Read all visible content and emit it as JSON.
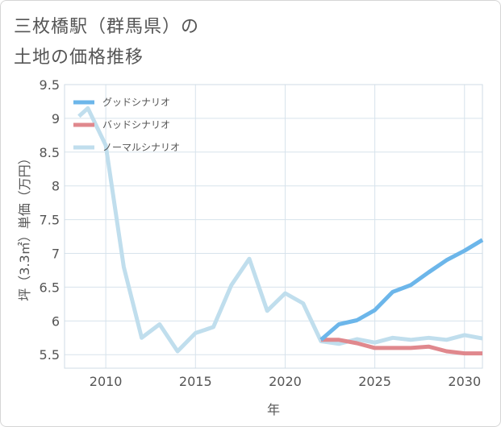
{
  "title_line1": "三枚橋駅（群馬県）の",
  "title_line2": "土地の価格推移",
  "chart_data": {
    "type": "line",
    "title": "三枚橋駅（群馬県）の土地の価格推移",
    "xlabel": "年",
    "ylabel": "坪（3.3㎡）単価（万円）",
    "xlim": [
      2007.7,
      2031
    ],
    "ylim": [
      5.3,
      9.5
    ],
    "xticks": [
      2010,
      2015,
      2020,
      2025,
      2030
    ],
    "yticks": [
      5.5,
      6,
      6.5,
      7,
      7.5,
      8,
      8.5,
      9,
      9.5
    ],
    "ytick_labels": [
      "5.5",
      "6",
      "6.5",
      "7",
      "7.5",
      "8",
      "8.5",
      "9",
      "9.5"
    ],
    "legend_position": "top-left",
    "series": [
      {
        "name": "グッドシナリオ",
        "color": "#6cb6ea",
        "x": [
          2022,
          2023,
          2024,
          2025,
          2026,
          2027,
          2028,
          2029,
          2030,
          2031
        ],
        "y": [
          5.72,
          5.95,
          6.01,
          6.16,
          6.43,
          6.53,
          6.72,
          6.9,
          7.04,
          7.2
        ]
      },
      {
        "name": "バッドシナリオ",
        "color": "#e0888d",
        "x": [
          2022,
          2023,
          2024,
          2025,
          2026,
          2027,
          2028,
          2029,
          2030,
          2031
        ],
        "y": [
          5.72,
          5.72,
          5.67,
          5.6,
          5.6,
          5.6,
          5.62,
          5.55,
          5.52,
          5.52
        ]
      },
      {
        "name": "ノーマルシナリオ",
        "color": "#c0deed",
        "x": [
          2008.5,
          2009,
          2010,
          2011,
          2012,
          2013,
          2014,
          2015,
          2016,
          2017,
          2018,
          2019,
          2020,
          2021,
          2022,
          2023,
          2024,
          2025,
          2026,
          2027,
          2028,
          2029,
          2030,
          2031
        ],
        "y": [
          9.03,
          9.15,
          8.6,
          6.8,
          5.75,
          5.95,
          5.55,
          5.82,
          5.91,
          6.53,
          6.92,
          6.15,
          6.41,
          6.26,
          5.7,
          5.66,
          5.73,
          5.68,
          5.75,
          5.72,
          5.75,
          5.72,
          5.79,
          5.74
        ]
      }
    ]
  }
}
